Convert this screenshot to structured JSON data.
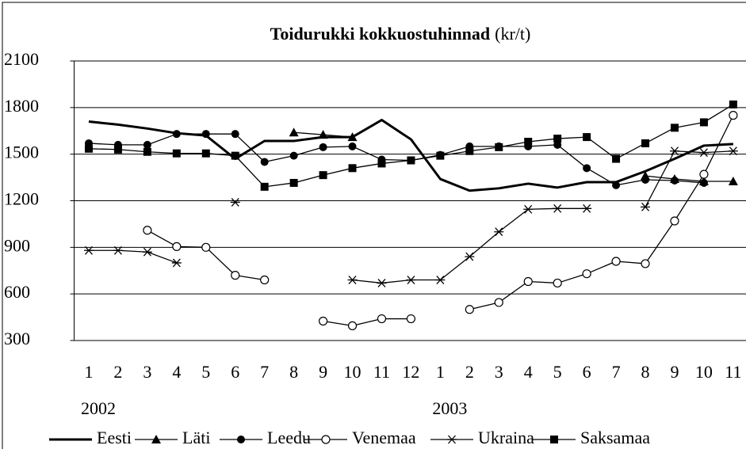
{
  "chart_data": {
    "type": "line",
    "title": "Toidurukki kokkuostuhinnad",
    "title_suffix": "(kr/t)",
    "categories": [
      "1",
      "2",
      "3",
      "4",
      "5",
      "6",
      "7",
      "8",
      "9",
      "10",
      "11",
      "12",
      "1",
      "2",
      "3",
      "4",
      "5",
      "6",
      "7",
      "8",
      "9",
      "10",
      "11"
    ],
    "year_labels": [
      "2002",
      null,
      null,
      null,
      null,
      null,
      null,
      null,
      null,
      null,
      null,
      null,
      "2003",
      null,
      null,
      null,
      null,
      null,
      null,
      null,
      null,
      null,
      null
    ],
    "ylim": [
      300,
      2100
    ],
    "yticks": [
      300,
      600,
      900,
      1200,
      1500,
      1800,
      2100
    ],
    "grid": true,
    "legend": "bottom",
    "series": [
      {
        "name": "Eesti",
        "color": "#000000",
        "marker": "none",
        "width": 3,
        "values": [
          1710,
          1690,
          1665,
          1635,
          1620,
          1470,
          1585,
          1585,
          1610,
          1610,
          1720,
          1595,
          1340,
          1265,
          1280,
          1310,
          1285,
          1320,
          1320,
          1390,
          1470,
          1555,
          1565
        ]
      },
      {
        "name": "Läti",
        "color": "#000000",
        "marker": "triangle",
        "width": 1.3,
        "values": [
          null,
          null,
          null,
          null,
          null,
          null,
          null,
          1640,
          1625,
          1610,
          null,
          null,
          null,
          null,
          null,
          null,
          null,
          null,
          null,
          1360,
          1340,
          1325,
          1325
        ]
      },
      {
        "name": "Leedu",
        "color": "#000000",
        "marker": "circle",
        "width": 1.3,
        "values": [
          1570,
          1560,
          1560,
          1630,
          1630,
          1630,
          1450,
          1490,
          1545,
          1550,
          1465,
          1460,
          1495,
          1550,
          1550,
          1550,
          1560,
          1410,
          1300,
          1335,
          1330,
          1315,
          null
        ]
      },
      {
        "name": "Venemaa",
        "color": "#000000",
        "marker": "open-circle",
        "width": 1.3,
        "values": [
          null,
          null,
          1010,
          905,
          900,
          720,
          690,
          null,
          425,
          395,
          440,
          440,
          null,
          500,
          545,
          680,
          670,
          730,
          810,
          795,
          1070,
          1370,
          1750
        ]
      },
      {
        "name": "Ukraina",
        "color": "#000000",
        "marker": "star",
        "width": 1.3,
        "values": [
          880,
          880,
          870,
          800,
          null,
          1190,
          null,
          null,
          null,
          690,
          670,
          690,
          690,
          840,
          1000,
          1145,
          1150,
          1150,
          null,
          1160,
          1520,
          1510,
          1520
        ]
      },
      {
        "name": "Saksamaa",
        "color": "#000000",
        "marker": "square",
        "width": 1.3,
        "values": [
          1535,
          1530,
          1515,
          1505,
          1505,
          1490,
          1290,
          1315,
          1365,
          1410,
          1440,
          1460,
          1490,
          1520,
          1545,
          1580,
          1600,
          1610,
          1470,
          1570,
          1670,
          1705,
          1820
        ]
      }
    ]
  }
}
